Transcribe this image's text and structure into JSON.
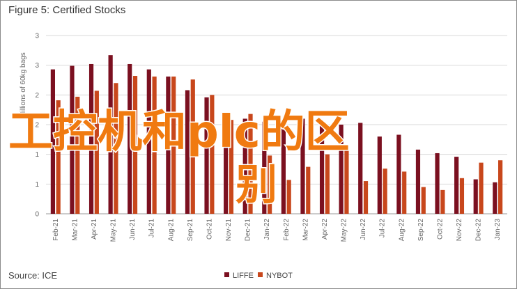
{
  "title": "Figure 5: Certified Stocks",
  "source": "Source: ICE",
  "watermark": {
    "line1": "工控机和plc的区",
    "line2": "别",
    "color": "#f07a10"
  },
  "chart_data": {
    "type": "bar",
    "ylabel": "Millions of 60kg bags",
    "ylim": [
      0,
      3
    ],
    "yticks": [
      0,
      0.5,
      1,
      1.5,
      2,
      2.5,
      3
    ],
    "ytick_labels": [
      "0",
      "1",
      "1",
      "2",
      "2",
      "3",
      "3"
    ],
    "grid": true,
    "legend_position": "bottom-center",
    "categories": [
      "Feb-21",
      "Mar-21",
      "Apr-21",
      "May-21",
      "Jun-21",
      "Jul-21",
      "Aug-21",
      "Sep-21",
      "Oct-21",
      "Nov-21",
      "Dec-21",
      "Jan-22",
      "Feb-22",
      "Mar-22",
      "Apr-22",
      "May-22",
      "Jun-22",
      "Jul-22",
      "Aug-22",
      "Sep-22",
      "Oct-22",
      "Nov-22",
      "Dec-22",
      "Jan-23"
    ],
    "series": [
      {
        "name": "LIFFE",
        "color": "#7b1020",
        "values": [
          2.43,
          2.49,
          2.52,
          2.67,
          2.52,
          2.43,
          2.31,
          2.08,
          1.96,
          1.7,
          1.6,
          1.55,
          1.48,
          1.6,
          1.48,
          1.5,
          1.53,
          1.3,
          1.33,
          1.08,
          1.02,
          0.96,
          0.58,
          0.53
        ]
      },
      {
        "name": "NYBOT",
        "color": "#c8471c",
        "values": [
          1.91,
          1.97,
          2.07,
          2.2,
          2.32,
          2.31,
          2.31,
          2.26,
          2.0,
          1.58,
          1.68,
          0.98,
          0.57,
          0.79,
          1.0,
          1.13,
          0.55,
          0.76,
          0.71,
          0.45,
          0.4,
          0.6,
          0.86,
          0.9
        ]
      }
    ]
  }
}
